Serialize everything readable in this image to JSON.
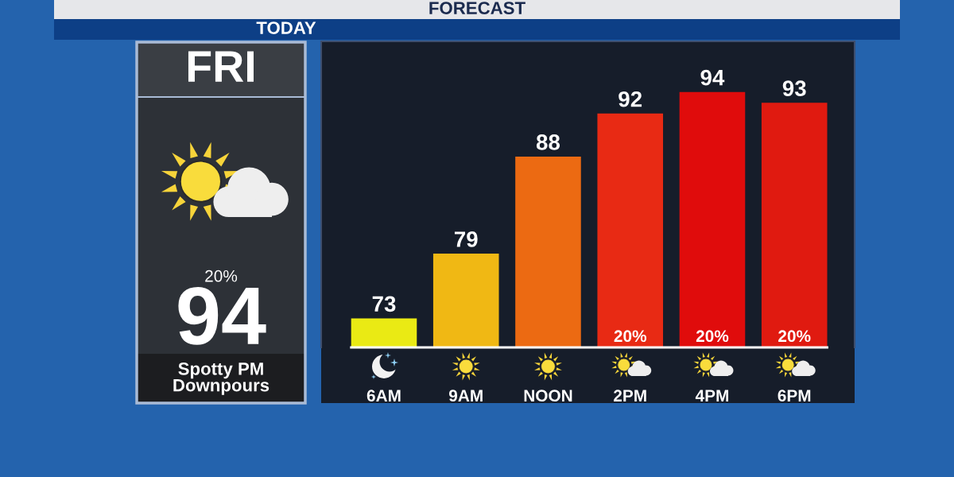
{
  "chart_data": [
    {
      "type": "other",
      "title": "FRI",
      "annotations": [
        "20%",
        "94",
        "Spotty PM\nDownpours"
      ]
    },
    {
      "type": "bar",
      "title": "FORECAST",
      "subtitle": "TODAY",
      "categories": [
        "6AM",
        "9AM",
        "NOON",
        "2PM",
        "4PM",
        "6PM"
      ],
      "values": [
        73,
        79,
        88,
        92,
        94,
        93
      ],
      "colors": [
        "#eaea14",
        "#f0b814",
        "#ec6a12",
        "#e82a14",
        "#e00c0c",
        "#e01a10"
      ],
      "data_labels": true,
      "ylim": [
        70.3,
        98.7
      ],
      "tick_labels": "x",
      "annotations": [
        "20%",
        "20%",
        "20%"
      ]
    }
  ]
}
